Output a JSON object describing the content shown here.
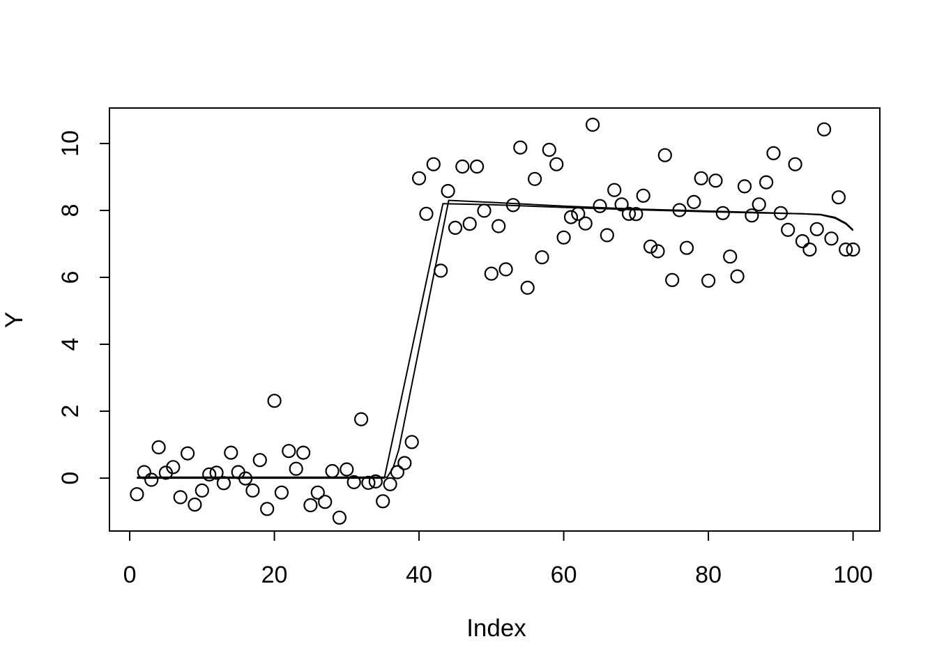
{
  "figure": {
    "background_color": "#ffffff",
    "foreground_color": "#000000"
  },
  "chart_data": {
    "type": "scatter",
    "title": "",
    "xlabel": "Index",
    "ylabel": "Y",
    "grid": false,
    "legend": false,
    "marker": "open-circle",
    "xlim": [
      -2.8,
      103.7
    ],
    "ylim": [
      -1.58,
      11.06
    ],
    "x_ticks": [
      0,
      20,
      40,
      60,
      80,
      100
    ],
    "y_ticks": [
      0,
      2,
      4,
      6,
      8,
      10
    ],
    "points": {
      "x": [
        1,
        2,
        3,
        4,
        5,
        6,
        7,
        8,
        9,
        10,
        11,
        12,
        13,
        14,
        15,
        16,
        17,
        18,
        19,
        20,
        21,
        22,
        23,
        24,
        25,
        26,
        27,
        28,
        29,
        30,
        31,
        32,
        33,
        34,
        35,
        36,
        37,
        38,
        39,
        40,
        41,
        42,
        43,
        44,
        45,
        46,
        47,
        48,
        49,
        50,
        51,
        52,
        53,
        54,
        55,
        56,
        57,
        58,
        59,
        60,
        61,
        62,
        63,
        64,
        65,
        66,
        67,
        68,
        69,
        70,
        71,
        72,
        73,
        74,
        75,
        76,
        77,
        78,
        79,
        80,
        81,
        82,
        83,
        84,
        85,
        86,
        87,
        88,
        89,
        90,
        91,
        92,
        93,
        94,
        95,
        96,
        97,
        98,
        99,
        100
      ],
      "y": [
        -0.48,
        0.18,
        -0.05,
        0.92,
        0.16,
        0.33,
        -0.57,
        0.74,
        -0.79,
        -0.37,
        0.11,
        0.16,
        -0.15,
        0.76,
        0.18,
        -0.01,
        -0.37,
        0.54,
        -0.92,
        2.31,
        -0.43,
        0.81,
        0.28,
        0.76,
        -0.81,
        -0.43,
        -0.71,
        0.21,
        -1.18,
        0.26,
        -0.12,
        1.76,
        -0.14,
        -0.1,
        -0.69,
        -0.18,
        0.18,
        0.45,
        1.08,
        8.96,
        7.9,
        9.38,
        6.2,
        8.58,
        7.48,
        9.31,
        7.6,
        9.31,
        7.99,
        6.11,
        7.53,
        6.24,
        8.16,
        9.88,
        5.69,
        8.94,
        6.6,
        9.81,
        9.38,
        7.19,
        7.8,
        7.9,
        7.61,
        10.56,
        8.13,
        7.26,
        8.61,
        8.18,
        7.9,
        7.89,
        8.44,
        6.92,
        6.78,
        9.65,
        5.92,
        8.01,
        6.88,
        8.25,
        8.96,
        5.9,
        8.89,
        7.92,
        6.62,
        6.03,
        8.72,
        7.85,
        8.18,
        8.84,
        9.71,
        7.92,
        7.42,
        9.38,
        7.08,
        6.83,
        7.44,
        10.42,
        7.16,
        8.39,
        6.83,
        6.83
      ]
    },
    "lines": [
      {
        "name": "fit-line-1",
        "points": [
          [
            1,
            0
          ],
          [
            35.2,
            0
          ],
          [
            43.3,
            8.2
          ],
          [
            50,
            8.17
          ],
          [
            60,
            8.09
          ],
          [
            70,
            8.02
          ],
          [
            80,
            7.96
          ],
          [
            88,
            7.92
          ],
          [
            93,
            7.9
          ],
          [
            95.5,
            7.88
          ],
          [
            97.5,
            7.79
          ],
          [
            99,
            7.62
          ],
          [
            100,
            7.42
          ]
        ]
      },
      {
        "name": "fit-line-2",
        "points": [
          [
            1,
            0.03
          ],
          [
            35.6,
            0.03
          ],
          [
            36.4,
            0.3
          ],
          [
            37.2,
            0.85
          ],
          [
            44.1,
            8.3
          ],
          [
            50,
            8.24
          ],
          [
            60,
            8.13
          ],
          [
            70,
            8.04
          ],
          [
            80,
            7.98
          ],
          [
            88,
            7.93
          ],
          [
            93,
            7.9
          ],
          [
            95.5,
            7.87
          ],
          [
            97.5,
            7.77
          ],
          [
            99,
            7.6
          ],
          [
            100,
            7.4
          ]
        ]
      }
    ]
  }
}
